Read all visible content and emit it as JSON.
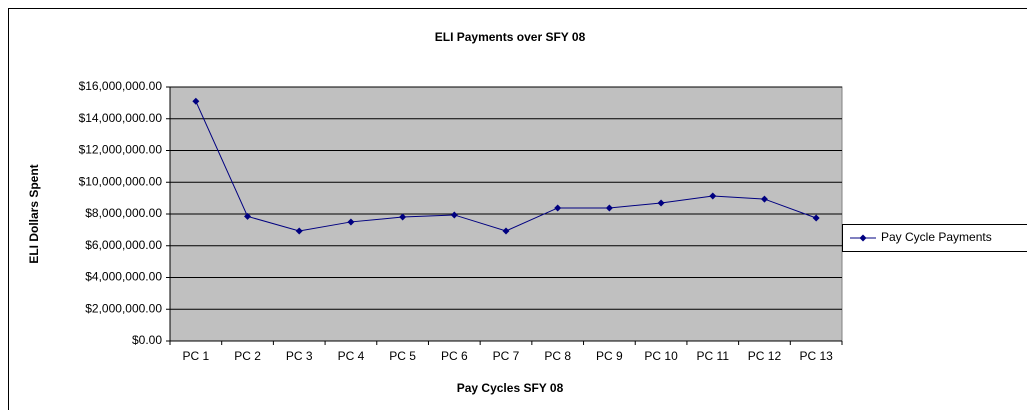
{
  "chart_data": {
    "type": "line",
    "title": "ELI Payments over SFY 08",
    "xlabel": "Pay Cycles SFY 08",
    "ylabel": "ELI Dollars Spent",
    "categories": [
      "PC 1",
      "PC 2",
      "PC 3",
      "PC 4",
      "PC 5",
      "PC 6",
      "PC 7",
      "PC 8",
      "PC 9",
      "PC 10",
      "PC 11",
      "PC 12",
      "PC 13"
    ],
    "series": [
      {
        "name": "Pay Cycle Payments",
        "color": "#000080",
        "values": [
          15100000,
          7850000,
          6930000,
          7500000,
          7810000,
          7940000,
          6930000,
          8380000,
          8380000,
          8690000,
          9130000,
          8940000,
          7750000
        ]
      }
    ],
    "ylim": [
      0,
      16000000
    ],
    "yticks": [
      {
        "value": 0,
        "label": "$0.00"
      },
      {
        "value": 2000000,
        "label": "$2,000,000.00"
      },
      {
        "value": 4000000,
        "label": "$4,000,000.00"
      },
      {
        "value": 6000000,
        "label": "$6,000,000.00"
      },
      {
        "value": 8000000,
        "label": "$8,000,000.00"
      },
      {
        "value": 10000000,
        "label": "$10,000,000.00"
      },
      {
        "value": 12000000,
        "label": "$12,000,000.00"
      },
      {
        "value": 14000000,
        "label": "$14,000,000.00"
      },
      {
        "value": 16000000,
        "label": "$16,000,000.00"
      }
    ],
    "grid": true,
    "legend": "right"
  }
}
